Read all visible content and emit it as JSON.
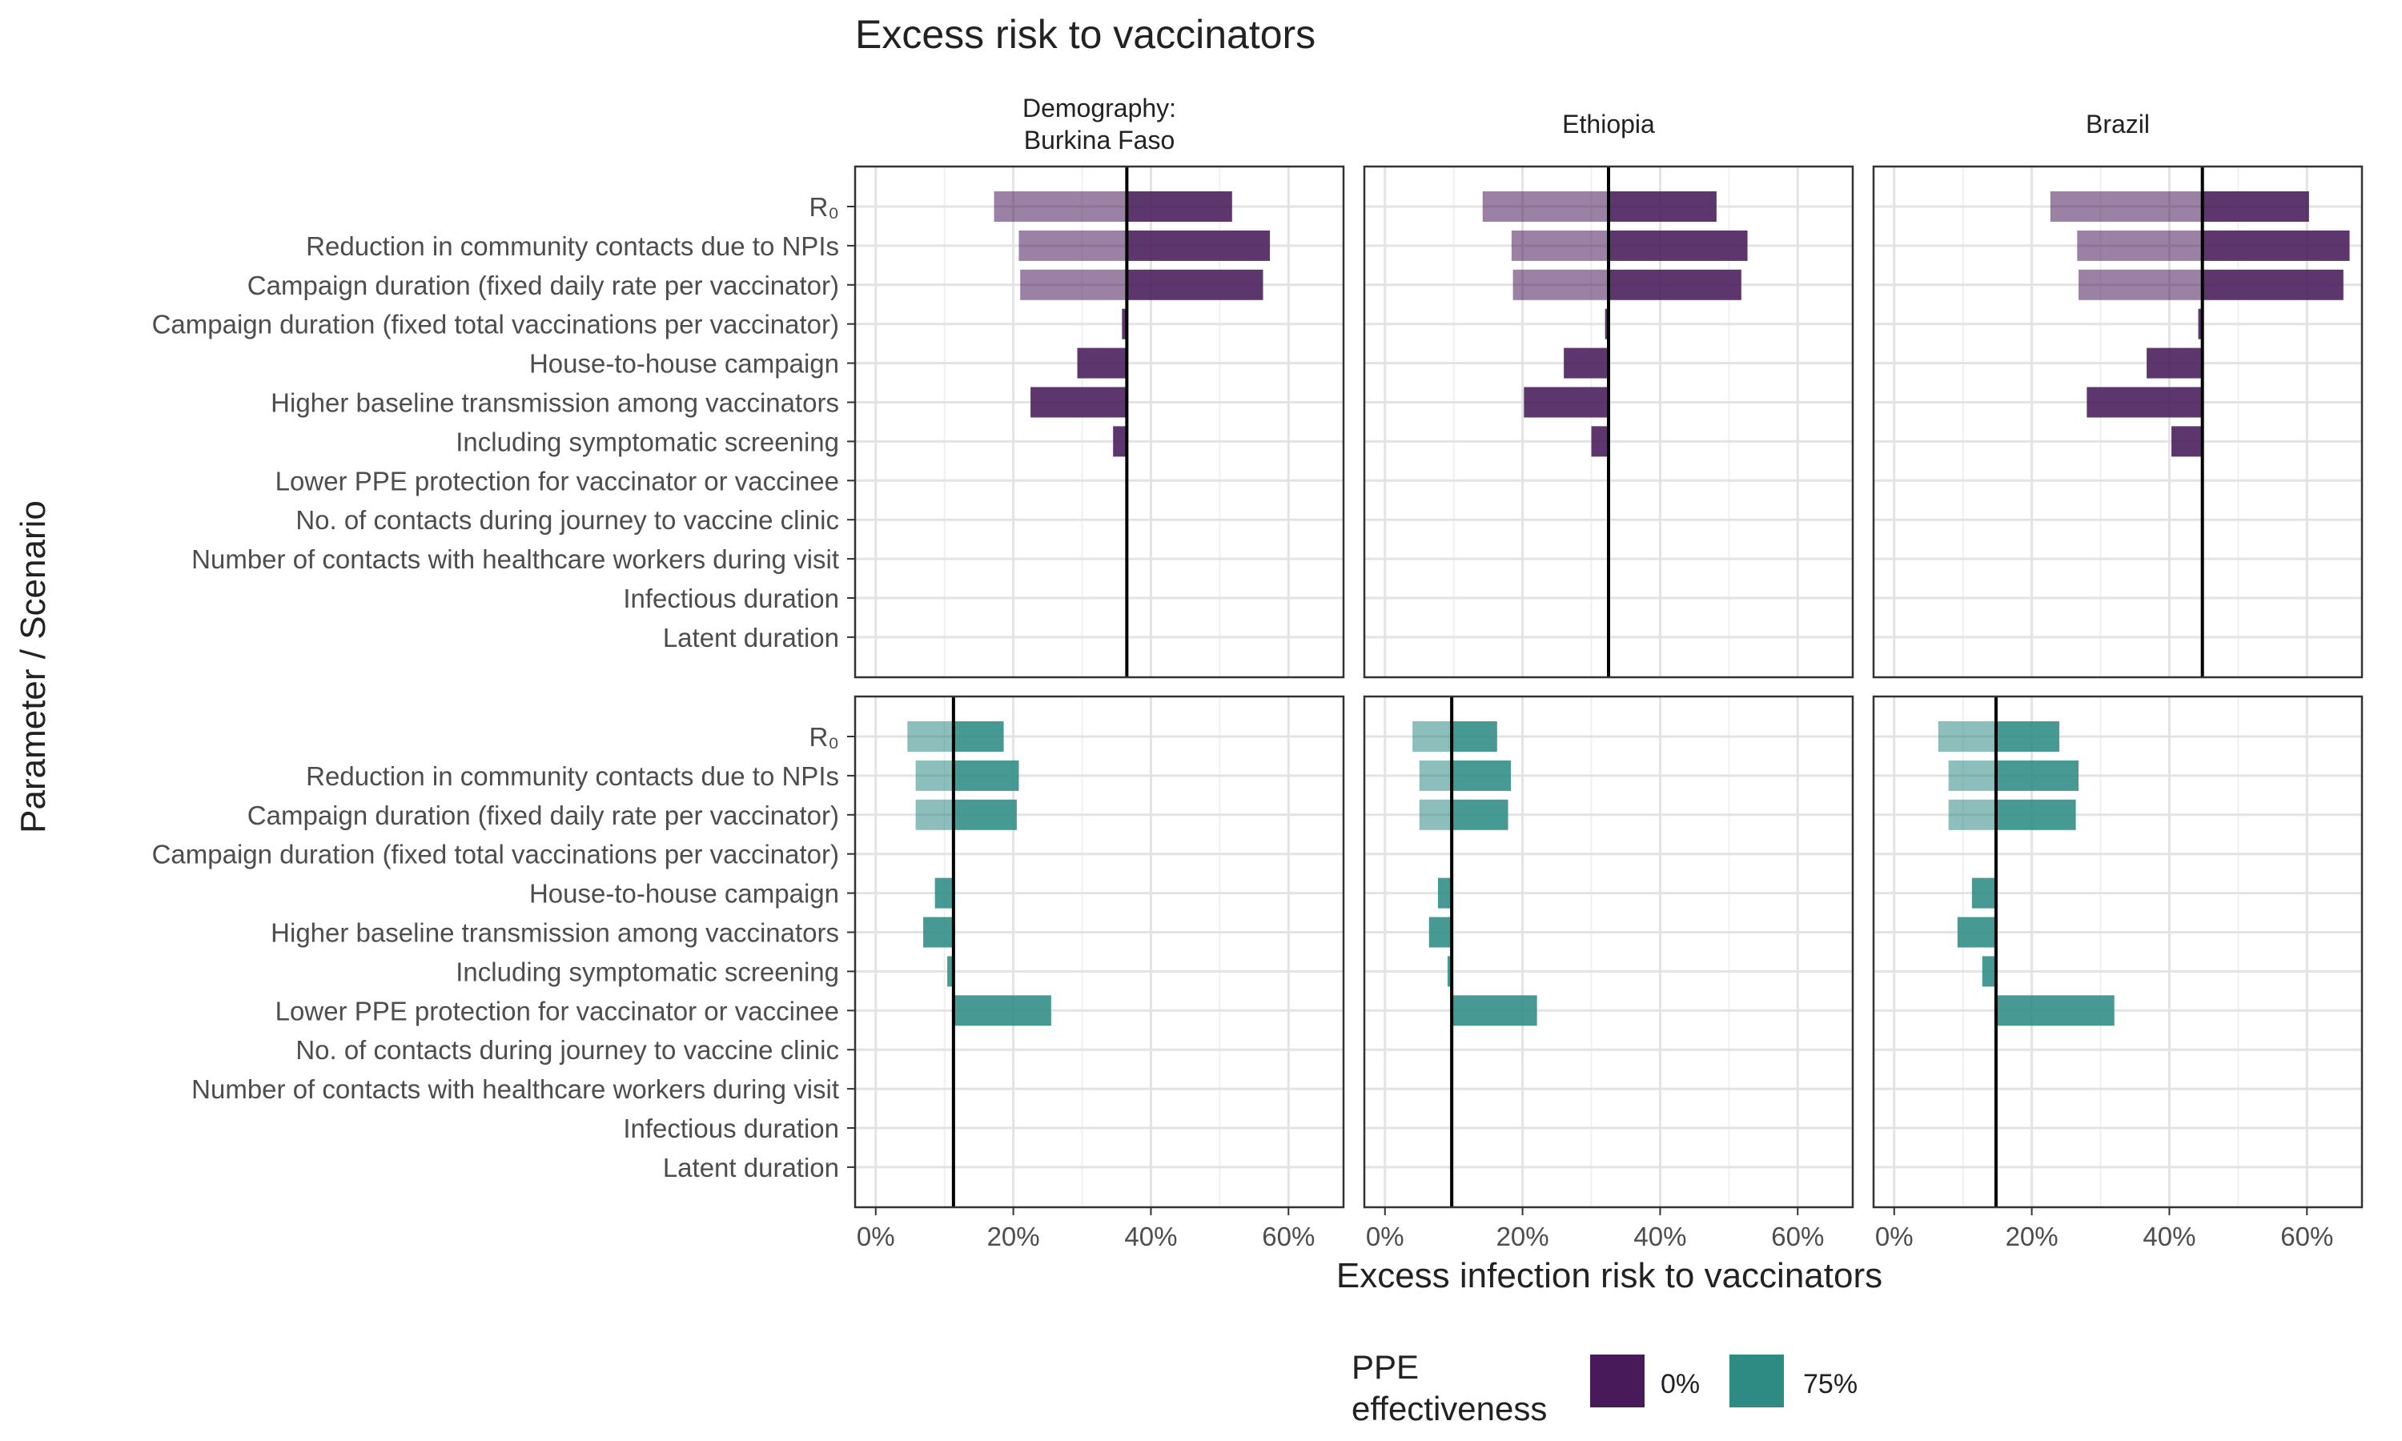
{
  "chart_data": {
    "type": "bar",
    "orientation": "horizontal",
    "title": "Excess risk to vaccinators",
    "xlabel": "Excess infection risk to vaccinators",
    "ylabel": "Parameter / Scenario",
    "xlim": [
      -0.03,
      0.68
    ],
    "x_ticks": [
      0,
      0.2,
      0.4,
      0.6
    ],
    "x_tick_labels": [
      "0%",
      "20%",
      "40%",
      "60%"
    ],
    "grid": true,
    "legend_position": "bottom",
    "legend": {
      "title_line1": "PPE",
      "title_line2": "effectiveness",
      "entries": [
        {
          "label": "0%",
          "color": "#481a5a"
        },
        {
          "label": "75%",
          "color": "#2e8b84"
        }
      ]
    },
    "categories": [
      "R₀",
      "Reduction in community contacts due to NPIs",
      "Campaign duration (fixed daily rate per vaccinator)",
      "Campaign duration (fixed total vaccinations per vaccinator)",
      "House-to-house campaign",
      "Higher baseline transmission among vaccinators",
      "Including symptomatic screening",
      "Lower PPE protection for vaccinator or vaccinee",
      "No. of contacts during journey to vaccine clinic",
      "Number of contacts with healthcare workers during visit",
      "Infectious duration",
      "Latent duration"
    ],
    "columns": [
      {
        "label_line1": "Demography:",
        "label_line2": "Burkina Faso"
      },
      {
        "label_line1": "Ethiopia",
        "label_line2": ""
      },
      {
        "label_line1": "Brazil",
        "label_line2": ""
      }
    ],
    "panels": [
      {
        "column": 0,
        "ppe": "0%",
        "baseline": 0.365,
        "low": [
          0.172,
          0.208,
          0.21,
          null,
          null,
          null,
          null,
          null,
          null,
          null,
          null,
          null
        ],
        "high": [
          0.518,
          0.573,
          0.563,
          0.358,
          0.293,
          0.225,
          0.345,
          null,
          null,
          null,
          null,
          null
        ]
      },
      {
        "column": 1,
        "ppe": "0%",
        "baseline": 0.325,
        "low": [
          0.142,
          0.184,
          0.186,
          null,
          null,
          null,
          null,
          null,
          null,
          null,
          null,
          null
        ],
        "high": [
          0.482,
          0.527,
          0.518,
          0.32,
          0.26,
          0.202,
          0.3,
          null,
          null,
          null,
          null,
          null
        ]
      },
      {
        "column": 2,
        "ppe": "0%",
        "baseline": 0.448,
        "low": [
          0.227,
          0.266,
          0.268,
          null,
          null,
          null,
          null,
          null,
          null,
          null,
          null,
          null
        ],
        "high": [
          0.603,
          0.662,
          0.653,
          0.442,
          0.367,
          0.28,
          0.403,
          null,
          null,
          null,
          null,
          null
        ]
      },
      {
        "column": 0,
        "ppe": "75%",
        "baseline": 0.113,
        "low": [
          0.046,
          0.058,
          0.058,
          null,
          null,
          null,
          null,
          null,
          null,
          null,
          null,
          null
        ],
        "high": [
          0.186,
          0.208,
          0.205,
          null,
          0.086,
          0.069,
          0.104,
          0.255,
          null,
          null,
          null,
          null
        ]
      },
      {
        "column": 1,
        "ppe": "75%",
        "baseline": 0.097,
        "low": [
          0.04,
          0.05,
          0.05,
          null,
          null,
          null,
          null,
          null,
          null,
          null,
          null,
          null
        ],
        "high": [
          0.163,
          0.183,
          0.179,
          null,
          0.077,
          0.064,
          0.091,
          0.221,
          null,
          null,
          null,
          null
        ]
      },
      {
        "column": 2,
        "ppe": "75%",
        "baseline": 0.148,
        "low": [
          0.064,
          0.079,
          0.079,
          null,
          null,
          null,
          null,
          null,
          null,
          null,
          null,
          null
        ],
        "high": [
          0.24,
          0.268,
          0.264,
          null,
          0.113,
          0.092,
          0.128,
          0.32,
          null,
          null,
          null,
          null
        ]
      }
    ]
  }
}
